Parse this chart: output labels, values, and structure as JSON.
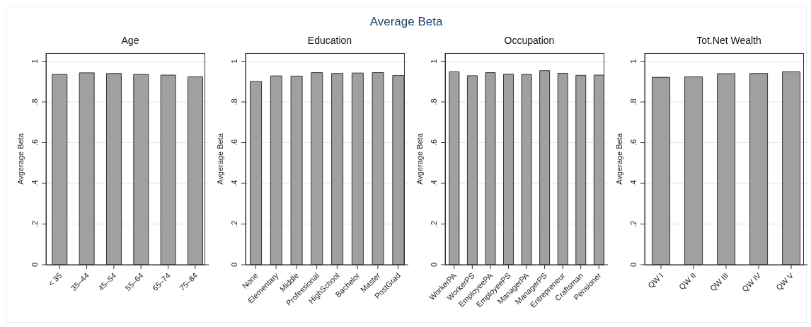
{
  "chart_data": [
    {
      "type": "bar",
      "title": "Age",
      "annotations": [
        "Average Beta"
      ],
      "ylabel": "Avgerage Beta",
      "categories": [
        "< 35",
        "35–44",
        "45–54",
        "55–64",
        "65–74",
        "75–84"
      ],
      "values": [
        0.935,
        0.943,
        0.94,
        0.935,
        0.932,
        0.923
      ],
      "color": "#a0a0a0",
      "ylim": [
        0,
        1.04
      ],
      "yticks": [
        {
          "value": 0,
          "label": "0"
        },
        {
          "value": 0.2,
          "label": ".2"
        },
        {
          "value": 0.4,
          "label": ".4"
        },
        {
          "value": 0.6,
          "label": ".6"
        },
        {
          "value": 0.8,
          "label": ".8"
        },
        {
          "value": 1,
          "label": "1"
        }
      ],
      "grid": "y"
    },
    {
      "type": "bar",
      "title": "Education",
      "ylabel": "Avgerage Beta",
      "categories": [
        "None",
        "Elementary",
        "Middle",
        "Professional",
        "HighSchool",
        "Bachelor",
        "Master",
        "PostGrad"
      ],
      "values": [
        0.9,
        0.928,
        0.927,
        0.944,
        0.94,
        0.942,
        0.944,
        0.93
      ],
      "color": "#a0a0a0",
      "ylim": [
        0,
        1.04
      ],
      "yticks": [
        {
          "value": 0,
          "label": "0"
        },
        {
          "value": 0.2,
          "label": ".2"
        },
        {
          "value": 0.4,
          "label": ".4"
        },
        {
          "value": 0.6,
          "label": ".6"
        },
        {
          "value": 0.8,
          "label": ".8"
        },
        {
          "value": 1,
          "label": "1"
        }
      ],
      "grid": "y"
    },
    {
      "type": "bar",
      "title": "Occupation",
      "ylabel": "Avgerage Beta",
      "categories": [
        "WorkerPA",
        "WorkerPS",
        "EmployeePA",
        "EmployeePS",
        "ManagerPA",
        "ManagerPS",
        "Entrepreneur",
        "Craftsman",
        "Pensioner"
      ],
      "values": [
        0.948,
        0.929,
        0.944,
        0.936,
        0.935,
        0.954,
        0.941,
        0.931,
        0.932
      ],
      "color": "#a0a0a0",
      "ylim": [
        0,
        1.04
      ],
      "yticks": [
        {
          "value": 0,
          "label": "0"
        },
        {
          "value": 0.2,
          "label": ".2"
        },
        {
          "value": 0.4,
          "label": ".4"
        },
        {
          "value": 0.6,
          "label": ".6"
        },
        {
          "value": 0.8,
          "label": ".8"
        },
        {
          "value": 1,
          "label": "1"
        }
      ],
      "grid": "y"
    },
    {
      "type": "bar",
      "title": "Tot.Net Wealth",
      "ylabel": "Avgerage Beta",
      "categories": [
        "QW I",
        "QW II",
        "QW III",
        "QW IV",
        "QW V"
      ],
      "values": [
        0.921,
        0.923,
        0.939,
        0.94,
        0.948
      ],
      "color": "#a0a0a0",
      "ylim": [
        0,
        1.04
      ],
      "yticks": [
        {
          "value": 0,
          "label": "0"
        },
        {
          "value": 0.2,
          "label": ".2"
        },
        {
          "value": 0.4,
          "label": ".4"
        },
        {
          "value": 0.6,
          "label": ".6"
        },
        {
          "value": 0.8,
          "label": ".8"
        },
        {
          "value": 1,
          "label": "1"
        }
      ],
      "grid": "y"
    }
  ]
}
